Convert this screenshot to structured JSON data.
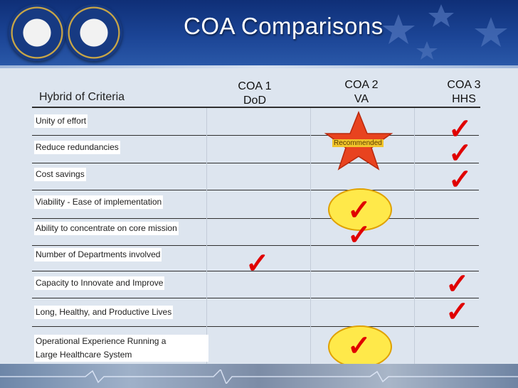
{
  "title": "COA Comparisons",
  "criteria_header": "Hybrid of Criteria",
  "columns": [
    {
      "line1": "COA 1",
      "line2": "DoD"
    },
    {
      "line1": "COA 2",
      "line2": "VA"
    },
    {
      "line1": "COA 3",
      "line2": "HHS"
    }
  ],
  "rows": [
    {
      "label": "Unity of effort"
    },
    {
      "label": "Reduce redundancies"
    },
    {
      "label": "Cost savings"
    },
    {
      "label": "Viability - Ease of implementation"
    },
    {
      "label": "Ability to concentrate on core mission"
    },
    {
      "label": "Number of Departments involved"
    },
    {
      "label": "Capacity to Innovate and Improve"
    },
    {
      "label": "Long, Healthy, and Productive Lives"
    },
    {
      "label_line1": "Operational Experience Running a",
      "label_line2": "Large Healthcare System"
    }
  ],
  "recommended_label": "Recommended",
  "check_glyph": "✓",
  "colors": {
    "check": "#e00000",
    "header": "#1b4495",
    "highlight": "#ffe94a",
    "star": "#e8431f"
  }
}
